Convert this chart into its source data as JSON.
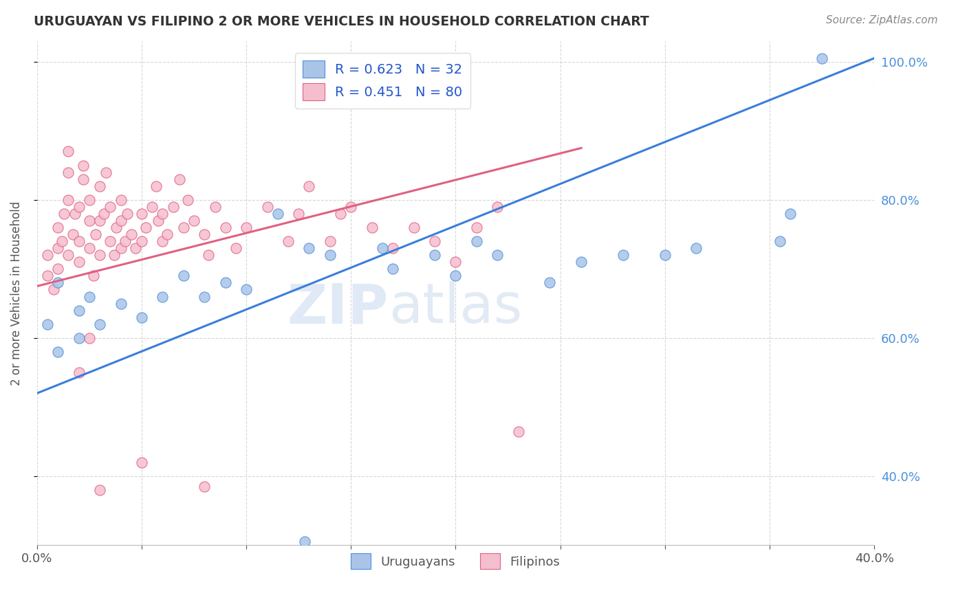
{
  "title": "URUGUAYAN VS FILIPINO 2 OR MORE VEHICLES IN HOUSEHOLD CORRELATION CHART",
  "source": "Source: ZipAtlas.com",
  "ylabel": "2 or more Vehicles in Household",
  "watermark_zip": "ZIP",
  "watermark_atlas": "atlas",
  "legend_uruguayan": "Uruguayans",
  "legend_filipino": "Filipinos",
  "R_uruguayan": 0.623,
  "N_uruguayan": 32,
  "R_filipino": 0.451,
  "N_filipino": 80,
  "uruguayan_face_color": "#aac4e8",
  "uruguayan_edge_color": "#4a90d9",
  "filipino_face_color": "#f5bece",
  "filipino_edge_color": "#e06080",
  "uruguayan_line_color": "#3a7fd9",
  "filipino_line_color": "#e06080",
  "xlim": [
    0.0,
    0.4
  ],
  "ylim": [
    0.3,
    1.03
  ],
  "xtick_positions": [
    0.0,
    0.05,
    0.1,
    0.15,
    0.2,
    0.25,
    0.3,
    0.35,
    0.4
  ],
  "xtick_labels": [
    "0.0%",
    "",
    "",
    "",
    "",
    "",
    "",
    "",
    "40.0%"
  ],
  "ytick_right_positions": [
    0.4,
    0.6,
    0.8,
    1.0
  ],
  "ytick_right_labels": [
    "40.0%",
    "60.0%",
    "80.0%",
    "100.0%"
  ],
  "blue_line_x0": 0.0,
  "blue_line_y0": 0.52,
  "blue_line_x1": 0.4,
  "blue_line_y1": 1.005,
  "pink_line_x0": 0.0,
  "pink_line_x1": 0.26,
  "pink_line_y0": 0.675,
  "pink_line_y1": 0.875,
  "uruguayan_pts": [
    [
      0.005,
      0.62
    ],
    [
      0.01,
      0.58
    ],
    [
      0.01,
      0.68
    ],
    [
      0.02,
      0.6
    ],
    [
      0.02,
      0.64
    ],
    [
      0.025,
      0.66
    ],
    [
      0.03,
      0.62
    ],
    [
      0.04,
      0.65
    ],
    [
      0.05,
      0.63
    ],
    [
      0.06,
      0.66
    ],
    [
      0.07,
      0.69
    ],
    [
      0.08,
      0.66
    ],
    [
      0.09,
      0.68
    ],
    [
      0.1,
      0.67
    ],
    [
      0.115,
      0.78
    ],
    [
      0.13,
      0.73
    ],
    [
      0.14,
      0.72
    ],
    [
      0.165,
      0.73
    ],
    [
      0.17,
      0.7
    ],
    [
      0.19,
      0.72
    ],
    [
      0.2,
      0.69
    ],
    [
      0.21,
      0.74
    ],
    [
      0.22,
      0.72
    ],
    [
      0.245,
      0.68
    ],
    [
      0.26,
      0.71
    ],
    [
      0.28,
      0.72
    ],
    [
      0.3,
      0.72
    ],
    [
      0.315,
      0.73
    ],
    [
      0.355,
      0.74
    ],
    [
      0.36,
      0.78
    ],
    [
      0.375,
      1.005
    ],
    [
      0.128,
      0.305
    ]
  ],
  "filipino_pts": [
    [
      0.005,
      0.69
    ],
    [
      0.005,
      0.72
    ],
    [
      0.008,
      0.67
    ],
    [
      0.01,
      0.7
    ],
    [
      0.01,
      0.73
    ],
    [
      0.01,
      0.76
    ],
    [
      0.012,
      0.74
    ],
    [
      0.013,
      0.78
    ],
    [
      0.015,
      0.72
    ],
    [
      0.015,
      0.8
    ],
    [
      0.015,
      0.84
    ],
    [
      0.015,
      0.87
    ],
    [
      0.017,
      0.75
    ],
    [
      0.018,
      0.78
    ],
    [
      0.02,
      0.71
    ],
    [
      0.02,
      0.74
    ],
    [
      0.02,
      0.79
    ],
    [
      0.022,
      0.83
    ],
    [
      0.022,
      0.85
    ],
    [
      0.025,
      0.73
    ],
    [
      0.025,
      0.77
    ],
    [
      0.025,
      0.8
    ],
    [
      0.027,
      0.69
    ],
    [
      0.028,
      0.75
    ],
    [
      0.03,
      0.72
    ],
    [
      0.03,
      0.77
    ],
    [
      0.03,
      0.82
    ],
    [
      0.032,
      0.78
    ],
    [
      0.033,
      0.84
    ],
    [
      0.035,
      0.74
    ],
    [
      0.035,
      0.79
    ],
    [
      0.037,
      0.72
    ],
    [
      0.038,
      0.76
    ],
    [
      0.04,
      0.73
    ],
    [
      0.04,
      0.77
    ],
    [
      0.04,
      0.8
    ],
    [
      0.042,
      0.74
    ],
    [
      0.043,
      0.78
    ],
    [
      0.045,
      0.75
    ],
    [
      0.047,
      0.73
    ],
    [
      0.05,
      0.74
    ],
    [
      0.05,
      0.78
    ],
    [
      0.052,
      0.76
    ],
    [
      0.055,
      0.79
    ],
    [
      0.057,
      0.82
    ],
    [
      0.058,
      0.77
    ],
    [
      0.06,
      0.74
    ],
    [
      0.06,
      0.78
    ],
    [
      0.062,
      0.75
    ],
    [
      0.065,
      0.79
    ],
    [
      0.068,
      0.83
    ],
    [
      0.07,
      0.76
    ],
    [
      0.072,
      0.8
    ],
    [
      0.075,
      0.77
    ],
    [
      0.08,
      0.75
    ],
    [
      0.082,
      0.72
    ],
    [
      0.085,
      0.79
    ],
    [
      0.09,
      0.76
    ],
    [
      0.095,
      0.73
    ],
    [
      0.1,
      0.76
    ],
    [
      0.11,
      0.79
    ],
    [
      0.12,
      0.74
    ],
    [
      0.125,
      0.78
    ],
    [
      0.13,
      0.82
    ],
    [
      0.14,
      0.74
    ],
    [
      0.145,
      0.78
    ],
    [
      0.15,
      0.79
    ],
    [
      0.16,
      0.76
    ],
    [
      0.17,
      0.73
    ],
    [
      0.18,
      0.76
    ],
    [
      0.19,
      0.74
    ],
    [
      0.2,
      0.71
    ],
    [
      0.21,
      0.76
    ],
    [
      0.22,
      0.79
    ],
    [
      0.23,
      0.465
    ],
    [
      0.08,
      0.385
    ],
    [
      0.03,
      0.38
    ],
    [
      0.05,
      0.42
    ],
    [
      0.02,
      0.55
    ],
    [
      0.025,
      0.6
    ]
  ]
}
